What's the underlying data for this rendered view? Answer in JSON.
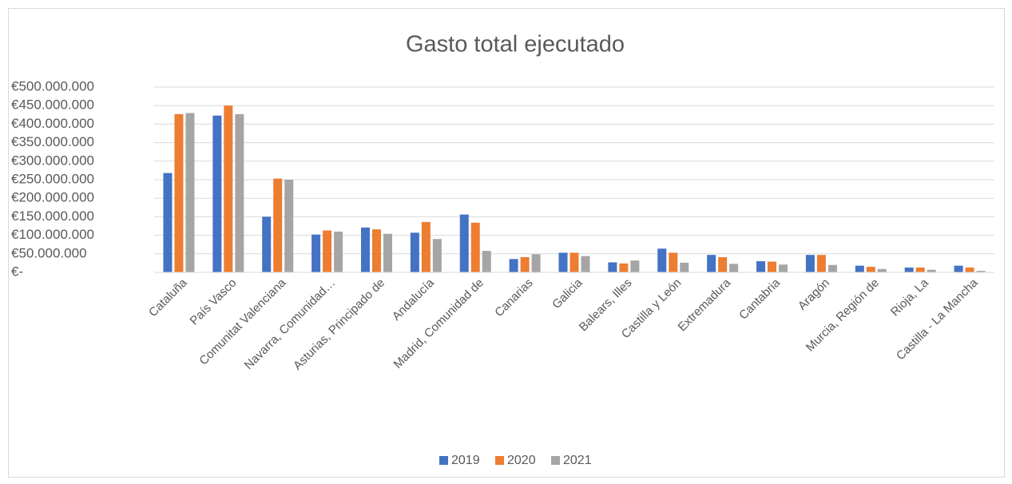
{
  "chart_data": {
    "type": "bar",
    "title": "Gasto total ejecutado",
    "categories": [
      "Cataluña",
      "País Vasco",
      "Comunitat Valenciana",
      "Navarra, Comunidad…",
      "Asturias, Principado de",
      "Andalucía",
      "Madrid, Comunidad de",
      "Canarias",
      "Galicia",
      "Balears, Illes",
      "Castilla y León",
      "Extremadura",
      "Cantabria",
      "Aragón",
      "Murcia, Región de",
      "Rioja, La",
      "Castilla - La Mancha"
    ],
    "series": [
      {
        "name": "2019",
        "color": "#4472c4",
        "values": [
          268000000,
          423000000,
          150000000,
          102000000,
          121000000,
          107000000,
          156000000,
          36000000,
          53000000,
          27000000,
          64000000,
          47000000,
          30000000,
          47000000,
          18000000,
          13000000,
          18000000
        ]
      },
      {
        "name": "2020",
        "color": "#ed7d31",
        "values": [
          427000000,
          450000000,
          253000000,
          113000000,
          116000000,
          136000000,
          134000000,
          41000000,
          53000000,
          24000000,
          53000000,
          41000000,
          29000000,
          47000000,
          15000000,
          13000000,
          13000000
        ]
      },
      {
        "name": "2021",
        "color": "#a5a5a5",
        "values": [
          430000000,
          427000000,
          250000000,
          110000000,
          104000000,
          90000000,
          58000000,
          49000000,
          44000000,
          32000000,
          26000000,
          23000000,
          21000000,
          20000000,
          9000000,
          7000000,
          4000000
        ]
      }
    ],
    "ylim": [
      0,
      500000000
    ],
    "yticks": [
      {
        "value": 0,
        "label": "€-"
      },
      {
        "value": 50000000,
        "label": "€50.000.000"
      },
      {
        "value": 100000000,
        "label": "€100.000.000"
      },
      {
        "value": 150000000,
        "label": "€150.000.000"
      },
      {
        "value": 200000000,
        "label": "€200.000.000"
      },
      {
        "value": 250000000,
        "label": "€250.000.000"
      },
      {
        "value": 300000000,
        "label": "€300.000.000"
      },
      {
        "value": 350000000,
        "label": "€350.000.000"
      },
      {
        "value": 400000000,
        "label": "€400.000.000"
      },
      {
        "value": 450000000,
        "label": "€450.000.000"
      },
      {
        "value": 500000000,
        "label": "€500.000.000"
      }
    ],
    "grid": true,
    "legend": "bottom"
  }
}
